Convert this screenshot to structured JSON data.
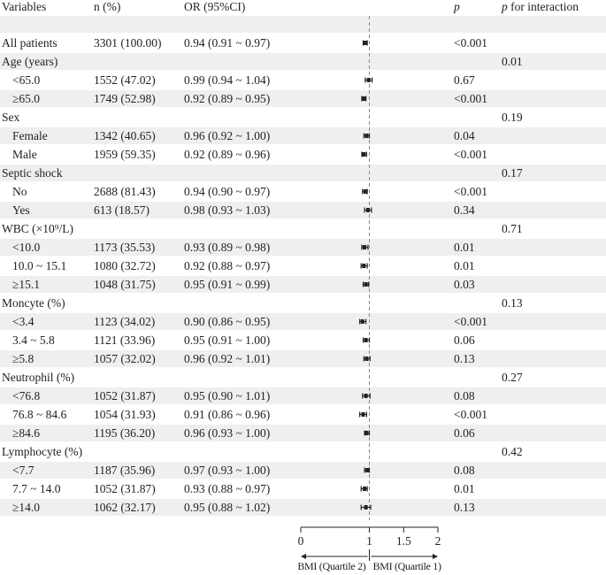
{
  "header": {
    "variables": "Variables",
    "n": "n (%)",
    "or": "OR (95%CI)",
    "p": "p",
    "p_interaction_italic": "p",
    "p_interaction_rest": " for interaction"
  },
  "rows": [
    {
      "label": "",
      "n": "",
      "or": "",
      "p": "",
      "pi": ""
    },
    {
      "label": "All patients",
      "n": "3301 (100.00)",
      "or": "0.94 (0.91 ~ 0.97)",
      "p": "<0.001",
      "pi": ""
    },
    {
      "label": "Age (years)",
      "n": "",
      "or": "",
      "p": "",
      "pi": "0.01"
    },
    {
      "label": "<65.0",
      "n": "1552 (47.02)",
      "or": "0.99 (0.94 ~ 1.04)",
      "p": "0.67",
      "pi": ""
    },
    {
      "label": "≥65.0",
      "n": "1749 (52.98)",
      "or": "0.92 (0.89 ~ 0.95)",
      "p": "<0.001",
      "pi": ""
    },
    {
      "label": "Sex",
      "n": "",
      "or": "",
      "p": "",
      "pi": "0.19"
    },
    {
      "label": "Female",
      "n": "1342 (40.65)",
      "or": "0.96 (0.92 ~ 1.00)",
      "p": "0.04",
      "pi": ""
    },
    {
      "label": "Male",
      "n": "1959 (59.35)",
      "or": "0.92 (0.89 ~ 0.96)",
      "p": "<0.001",
      "pi": ""
    },
    {
      "label": "Septic shock",
      "n": "",
      "or": "",
      "p": "",
      "pi": "0.17"
    },
    {
      "label": "No",
      "n": "2688 (81.43)",
      "or": "0.94 (0.90 ~ 0.97)",
      "p": "<0.001",
      "pi": ""
    },
    {
      "label": "Yes",
      "n": "613 (18.57)",
      "or": "0.98 (0.93 ~ 1.03)",
      "p": "0.34",
      "pi": ""
    },
    {
      "label": "WBC (×10⁹/L)",
      "n": "",
      "or": "",
      "p": "",
      "pi": "0.71"
    },
    {
      "label": "<10.0",
      "n": "1173 (35.53)",
      "or": "0.93 (0.89 ~ 0.98)",
      "p": "0.01",
      "pi": ""
    },
    {
      "label": "10.0 ~ 15.1",
      "n": "1080 (32.72)",
      "or": "0.92 (0.88 ~ 0.97)",
      "p": "0.01",
      "pi": ""
    },
    {
      "label": "≥15.1",
      "n": "1048 (31.75)",
      "or": "0.95 (0.91 ~ 0.99)",
      "p": "0.03",
      "pi": ""
    },
    {
      "label": "Moncyte (%)",
      "n": "",
      "or": "",
      "p": "",
      "pi": "0.13"
    },
    {
      "label": "<3.4",
      "n": "1123 (34.02)",
      "or": "0.90 (0.86 ~ 0.95)",
      "p": "<0.001",
      "pi": ""
    },
    {
      "label": "3.4 ~ 5.8",
      "n": "1121 (33.96)",
      "or": "0.95 (0.91 ~ 1.00)",
      "p": "0.06",
      "pi": ""
    },
    {
      "label": "≥5.8",
      "n": "1057 (32.02)",
      "or": "0.96 (0.92 ~ 1.01)",
      "p": "0.13",
      "pi": ""
    },
    {
      "label": "Neutrophil (%)",
      "n": "",
      "or": "",
      "p": "",
      "pi": "0.27"
    },
    {
      "label": "<76.8",
      "n": "1052 (31.87)",
      "or": "0.95 (0.90 ~ 1.01)",
      "p": "0.08",
      "pi": ""
    },
    {
      "label": "76.8 ~ 84.6",
      "n": "1054 (31.93)",
      "or": "0.91 (0.86 ~ 0.96)",
      "p": "<0.001",
      "pi": ""
    },
    {
      "label": "≥84.6",
      "n": "1195 (36.20)",
      "or": "0.96 (0.93 ~ 1.00)",
      "p": "0.06",
      "pi": ""
    },
    {
      "label": "Lymphocyte (%)",
      "n": "",
      "or": "",
      "p": "",
      "pi": "0.42"
    },
    {
      "label": "<7.7",
      "n": "1187 (35.96)",
      "or": "0.97 (0.93 ~ 1.00)",
      "p": "0.08",
      "pi": ""
    },
    {
      "label": "7.7 ~ 14.0",
      "n": "1052 (31.87)",
      "or": "0.93 (0.88 ~ 0.97)",
      "p": "0.01",
      "pi": ""
    },
    {
      "label": "≥14.0",
      "n": "1062 (32.17)",
      "or": "0.95 (0.88 ~ 1.02)",
      "p": "0.13",
      "pi": ""
    }
  ],
  "chart_data": {
    "type": "scatter",
    "subtype": "forest-plot",
    "reference_line": 1,
    "reference_line_style": "dashed",
    "xlim": [
      0,
      2
    ],
    "xticks": [
      "0",
      "1",
      "1.5",
      "2"
    ],
    "x_arrow_left_label": "BMI (Quartile 2)",
    "x_arrow_right_label": "BMI (Quartile 1)",
    "series": [
      {
        "row": 1,
        "or": 0.94,
        "lo": 0.91,
        "hi": 0.97
      },
      {
        "row": 3,
        "or": 0.99,
        "lo": 0.94,
        "hi": 1.04
      },
      {
        "row": 4,
        "or": 0.92,
        "lo": 0.89,
        "hi": 0.95
      },
      {
        "row": 6,
        "or": 0.96,
        "lo": 0.92,
        "hi": 1.0
      },
      {
        "row": 7,
        "or": 0.92,
        "lo": 0.89,
        "hi": 0.96
      },
      {
        "row": 9,
        "or": 0.94,
        "lo": 0.9,
        "hi": 0.97
      },
      {
        "row": 10,
        "or": 0.98,
        "lo": 0.93,
        "hi": 1.03
      },
      {
        "row": 12,
        "or": 0.93,
        "lo": 0.89,
        "hi": 0.98
      },
      {
        "row": 13,
        "or": 0.92,
        "lo": 0.88,
        "hi": 0.97
      },
      {
        "row": 14,
        "or": 0.95,
        "lo": 0.91,
        "hi": 0.99
      },
      {
        "row": 16,
        "or": 0.9,
        "lo": 0.86,
        "hi": 0.95
      },
      {
        "row": 17,
        "or": 0.95,
        "lo": 0.91,
        "hi": 1.0
      },
      {
        "row": 18,
        "or": 0.96,
        "lo": 0.92,
        "hi": 1.01
      },
      {
        "row": 20,
        "or": 0.95,
        "lo": 0.9,
        "hi": 1.01
      },
      {
        "row": 21,
        "or": 0.91,
        "lo": 0.86,
        "hi": 0.96
      },
      {
        "row": 22,
        "or": 0.96,
        "lo": 0.93,
        "hi": 1.0
      },
      {
        "row": 24,
        "or": 0.97,
        "lo": 0.93,
        "hi": 1.0
      },
      {
        "row": 25,
        "or": 0.93,
        "lo": 0.88,
        "hi": 0.97
      },
      {
        "row": 26,
        "or": 0.95,
        "lo": 0.88,
        "hi": 1.02
      }
    ],
    "colors": {
      "shade": "#efefef",
      "ink": "#222222",
      "reference": "#888888"
    }
  }
}
